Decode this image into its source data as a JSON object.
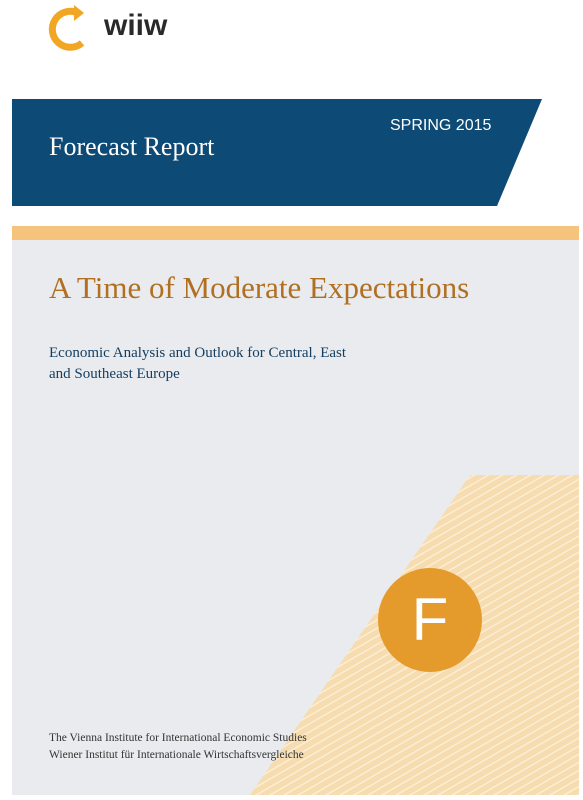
{
  "logo": {
    "brand": "wiiw",
    "icon": "wiiw-logo-mark",
    "color": "#f2a623"
  },
  "banner": {
    "series": "Forecast Report",
    "season": "SPRING 2015",
    "color": "#0d4a75"
  },
  "report": {
    "title": "A Time of Moderate Expectations",
    "subtitle_line1": "Economic Analysis and Outlook for Central, East",
    "subtitle_line2": "and Southeast Europe",
    "badge_letter": "F"
  },
  "publisher": {
    "line1": "The Vienna Institute for International Economic Studies",
    "line2": "Wiener Institut für Internationale Wirtschaftsvergleiche"
  },
  "colors": {
    "accent_gold": "#f5c37c",
    "title_brown": "#b06f21",
    "badge_orange": "#e59a2c",
    "panel_grey": "#e9ebee"
  }
}
